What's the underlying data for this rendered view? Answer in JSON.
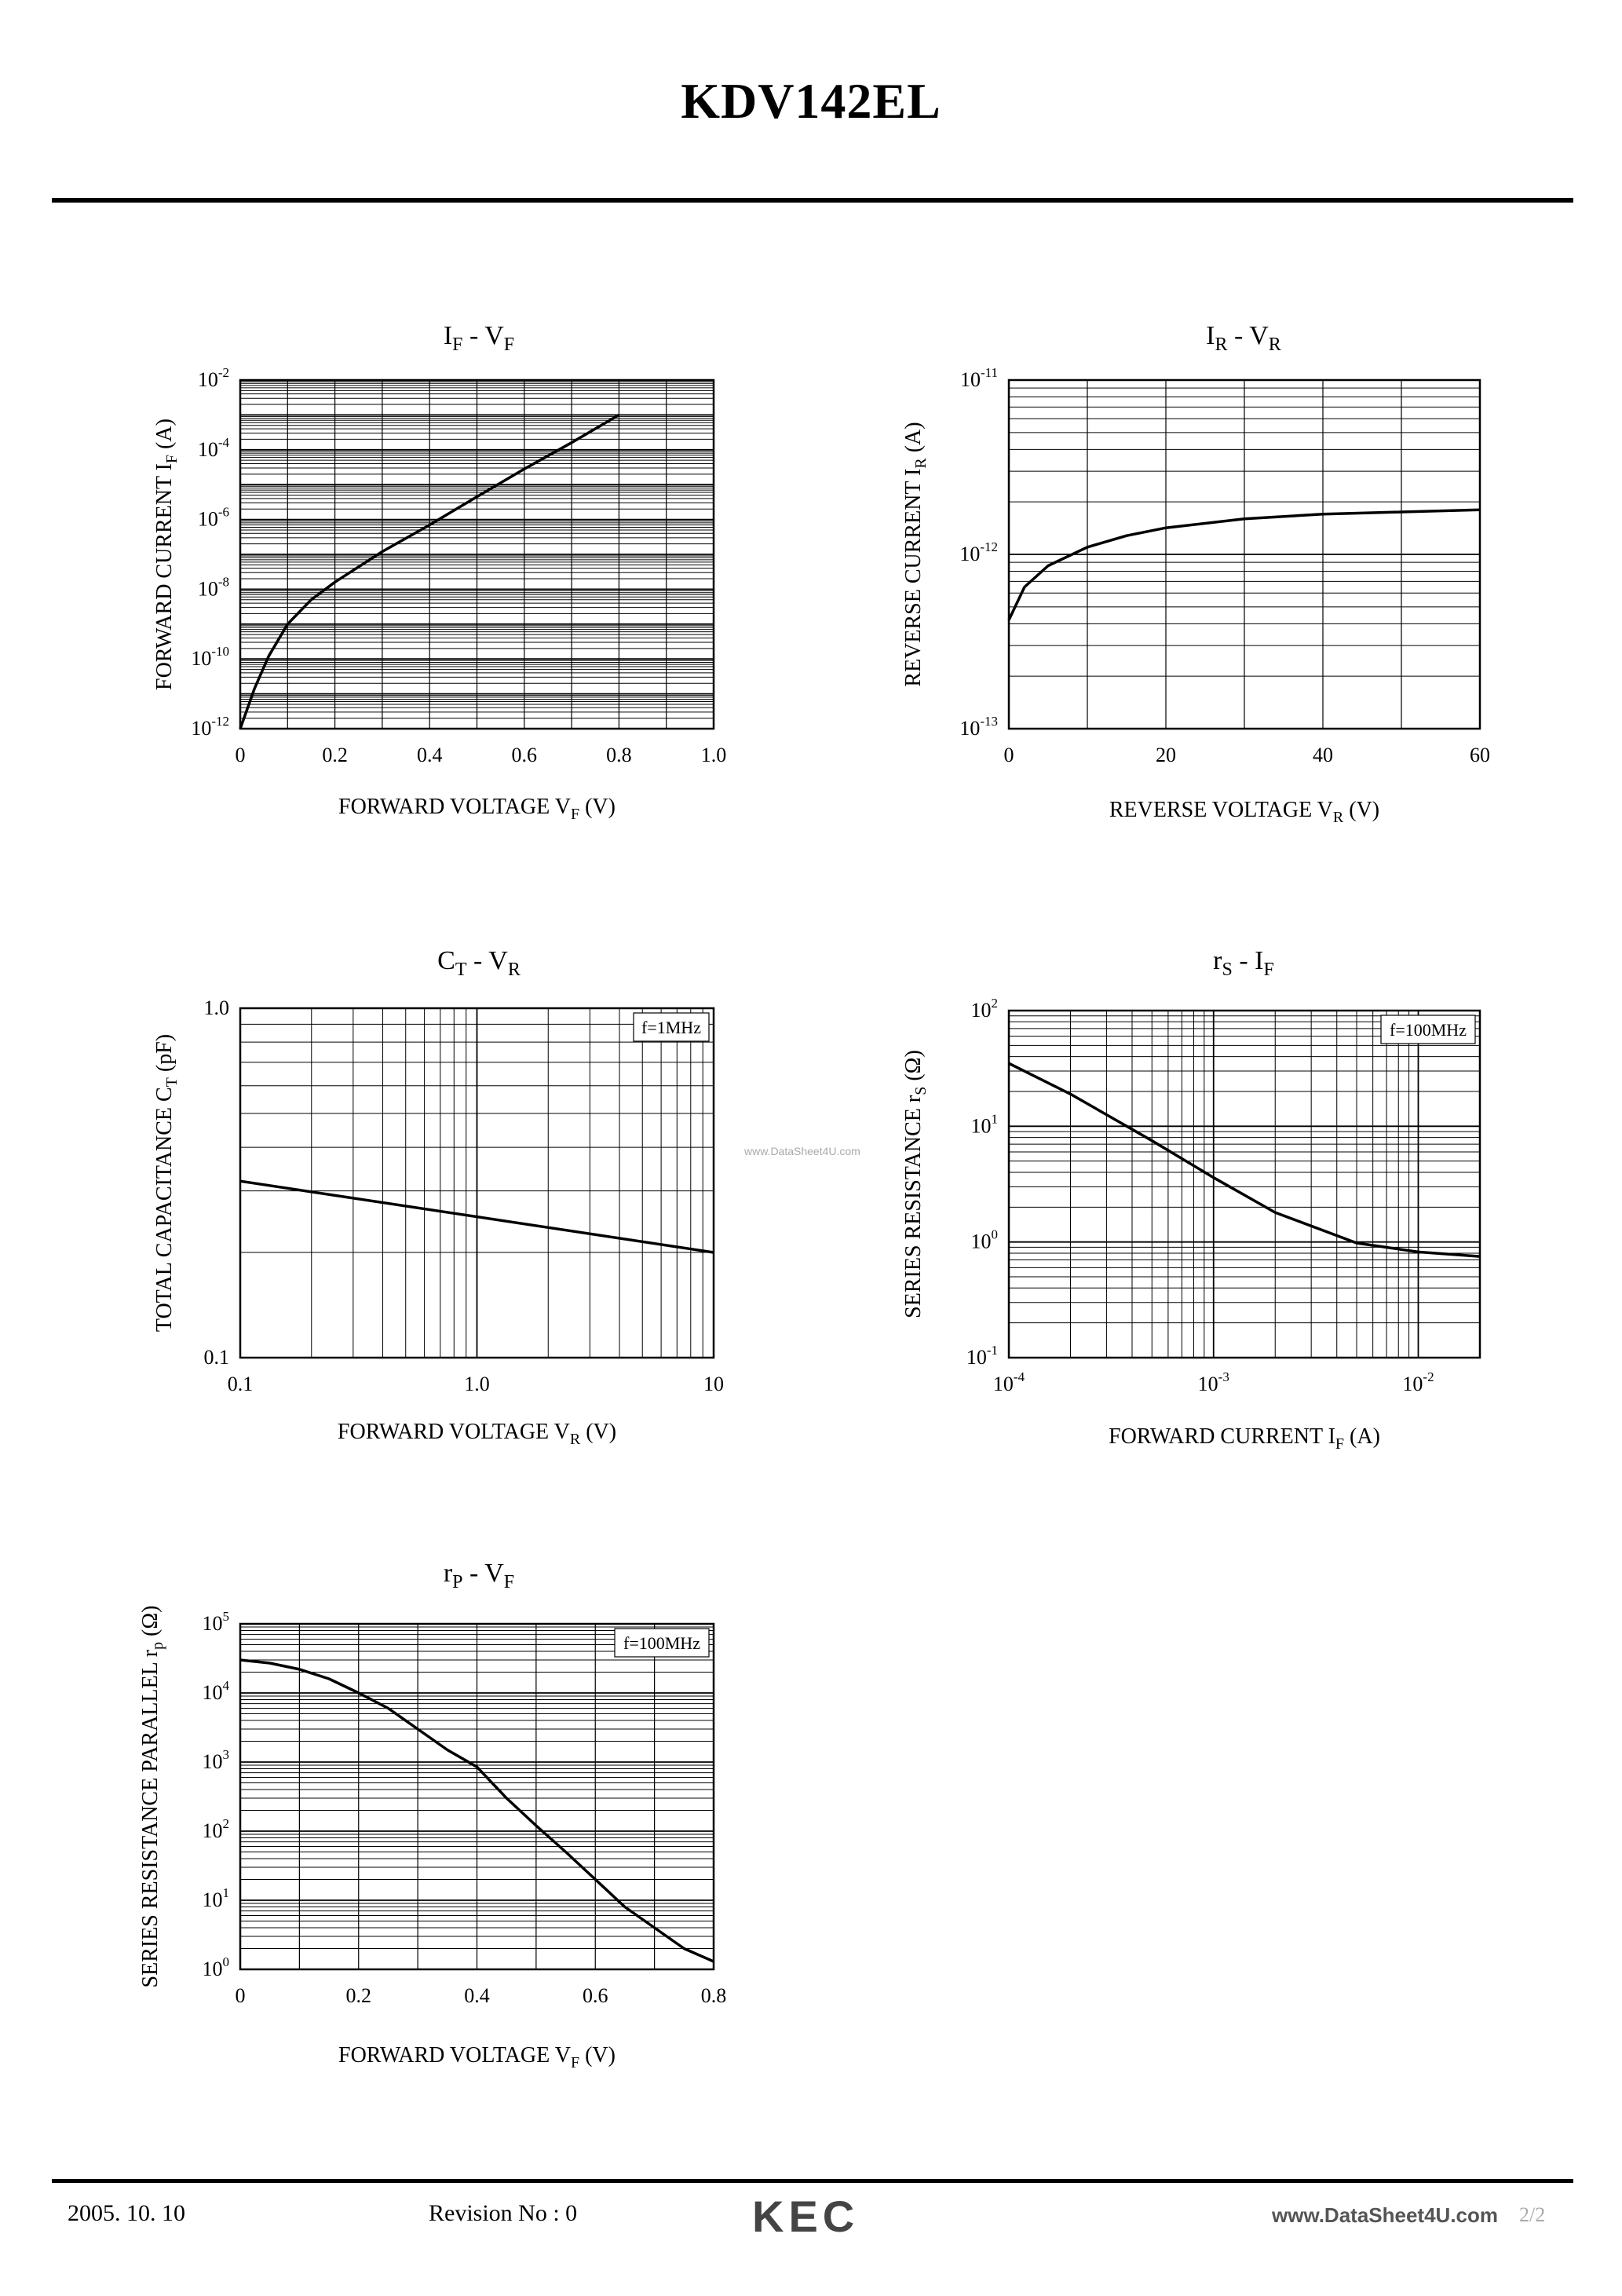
{
  "document": {
    "title": "KDV142EL",
    "footer": {
      "date": "2005. 10. 10",
      "revision": "Revision No : 0",
      "logo": "KEC",
      "website": "www.DataSheet4U.com",
      "page": "2/2"
    },
    "watermark": "www.DataSheet4U.com"
  },
  "chart_data": [
    {
      "id": "if-vf",
      "type": "line",
      "title": {
        "main": "I",
        "main_sub": "F",
        "sep": "-",
        "second": "V",
        "second_sub": "F"
      },
      "xlabel": {
        "pre": "FORWARD VOLTAGE  V",
        "sub": "F",
        "post": " (V)"
      },
      "ylabel": {
        "pre": "FORWARD CURRENT  I",
        "sub": "F",
        "post": " (A)"
      },
      "xscale": "linear",
      "yscale": "log",
      "xlim": [
        0,
        1.0
      ],
      "ylim": [
        1e-12,
        0.01
      ],
      "xticks": [
        {
          "v": 0,
          "label": "0"
        },
        {
          "v": 0.2,
          "label": "0.2"
        },
        {
          "v": 0.4,
          "label": "0.4"
        },
        {
          "v": 0.6,
          "label": "0.6"
        },
        {
          "v": 0.8,
          "label": "0.8"
        },
        {
          "v": 1.0,
          "label": "1.0"
        }
      ],
      "yticks": [
        {
          "v": 1e-12,
          "base": "10",
          "exp": "-12"
        },
        {
          "v": 1e-10,
          "base": "10",
          "exp": "-10"
        },
        {
          "v": 1e-08,
          "base": "10",
          "exp": "-8"
        },
        {
          "v": 1e-06,
          "base": "10",
          "exp": "-6"
        },
        {
          "v": 0.0001,
          "base": "10",
          "exp": "-4"
        },
        {
          "v": 0.01,
          "base": "10",
          "exp": "-2"
        }
      ],
      "xgrid_minor": 10,
      "series": [
        {
          "name": "IF",
          "x": [
            0,
            0.03,
            0.06,
            0.1,
            0.15,
            0.2,
            0.3,
            0.4,
            0.5,
            0.6,
            0.7,
            0.8
          ],
          "y": [
            1e-12,
            1.4e-11,
            1.2e-10,
            1e-09,
            5e-09,
            1.6e-08,
            1.2e-07,
            7e-07,
            4.5e-06,
            2.8e-05,
            0.00016,
            0.001
          ]
        }
      ]
    },
    {
      "id": "ir-vr",
      "type": "line",
      "title": {
        "main": "I",
        "main_sub": "R",
        "sep": "-",
        "second": "V",
        "second_sub": "R"
      },
      "xlabel": {
        "pre": "REVERSE VOLTAGE  V",
        "sub": "R",
        "post": " (V)"
      },
      "ylabel": {
        "pre": "REVERSE CURRENT  I",
        "sub": "R",
        "post": " (A)"
      },
      "xscale": "linear",
      "yscale": "log",
      "xlim": [
        0,
        60
      ],
      "ylim": [
        1e-13,
        1e-11
      ],
      "xticks": [
        {
          "v": 0,
          "label": "0"
        },
        {
          "v": 20,
          "label": "20"
        },
        {
          "v": 40,
          "label": "40"
        },
        {
          "v": 60,
          "label": "60"
        }
      ],
      "yticks": [
        {
          "v": 1e-13,
          "base": "10",
          "exp": "-13"
        },
        {
          "v": 1e-12,
          "base": "10",
          "exp": "-12"
        },
        {
          "v": 1e-11,
          "base": "10",
          "exp": "-11"
        }
      ],
      "xgrid_minor": 6,
      "series": [
        {
          "name": "IR",
          "x": [
            0,
            2,
            5,
            10,
            15,
            20,
            30,
            40,
            50,
            60
          ],
          "y": [
            4.2e-13,
            6.5e-13,
            8.6e-13,
            1.1e-12,
            1.28e-12,
            1.42e-12,
            1.6e-12,
            1.7e-12,
            1.75e-12,
            1.8e-12
          ]
        }
      ]
    },
    {
      "id": "ct-vr",
      "type": "line",
      "title": {
        "main": "C",
        "main_sub": "T",
        "sep": "-",
        "second": "V",
        "second_sub": "R"
      },
      "xlabel": {
        "pre": "FORWARD VOLTAGE  V",
        "sub": "R",
        "post": " (V)"
      },
      "ylabel": {
        "pre": "TOTAL CAPACITANCE  C",
        "sub": "T",
        "post": " (pF)"
      },
      "annotation": "f=1MHz",
      "xscale": "log",
      "yscale": "log",
      "xlim": [
        0.1,
        10
      ],
      "ylim": [
        0.1,
        1.0
      ],
      "xticks": [
        {
          "v": 0.1,
          "label": "0.1"
        },
        {
          "v": 1.0,
          "label": "1.0"
        },
        {
          "v": 10,
          "label": "10"
        }
      ],
      "yticks": [
        {
          "v": 0.1,
          "label": "0.1"
        },
        {
          "v": 1.0,
          "label": "1.0"
        }
      ],
      "series": [
        {
          "name": "CT",
          "x": [
            0.1,
            10
          ],
          "y": [
            0.32,
            0.2
          ]
        }
      ]
    },
    {
      "id": "rs-if",
      "type": "line",
      "title": {
        "main": "r",
        "main_sub": "S",
        "sep": "-",
        "second": "I",
        "second_sub": "F"
      },
      "xlabel": {
        "pre": "FORWARD CURRENT  I",
        "sub": "F",
        "post": " (A)"
      },
      "ylabel": {
        "pre": "SERIES RESISTANCE   r",
        "sub": "S",
        "post": " (Ω)"
      },
      "annotation": "f=100MHz",
      "xscale": "log",
      "yscale": "log",
      "xlim": [
        0.0001,
        0.02
      ],
      "ylim": [
        0.1,
        100
      ],
      "xticks": [
        {
          "v": 0.0001,
          "base": "10",
          "exp": "-4"
        },
        {
          "v": 0.001,
          "base": "10",
          "exp": "-3"
        },
        {
          "v": 0.01,
          "base": "10",
          "exp": "-2"
        }
      ],
      "yticks": [
        {
          "v": 0.1,
          "base": "10",
          "exp": "-1"
        },
        {
          "v": 1,
          "base": "10",
          "exp": "0"
        },
        {
          "v": 10,
          "base": "10",
          "exp": "1"
        },
        {
          "v": 100,
          "base": "10",
          "exp": "2"
        }
      ],
      "series": [
        {
          "name": "rs",
          "x": [
            0.0001,
            0.0002,
            0.0005,
            0.001,
            0.002,
            0.005,
            0.01,
            0.02
          ],
          "y": [
            35,
            19,
            7.5,
            3.6,
            1.8,
            0.98,
            0.82,
            0.75
          ]
        }
      ]
    },
    {
      "id": "rp-vf",
      "type": "line",
      "title": {
        "main": "r",
        "main_sub": "P",
        "sep": "-",
        "second": "V",
        "second_sub": "F"
      },
      "xlabel": {
        "pre": "FORWARD VOLTAGE   V",
        "sub": "F",
        "post": " (V)"
      },
      "ylabel": {
        "pre": "SERIES RESISTANCE PARALLEL   r",
        "sub": "p",
        "post": " (Ω)"
      },
      "annotation": "f=100MHz",
      "xscale": "linear",
      "yscale": "log",
      "xlim": [
        0,
        0.8
      ],
      "ylim": [
        1,
        100000.0
      ],
      "xticks": [
        {
          "v": 0,
          "label": "0"
        },
        {
          "v": 0.2,
          "label": "0.2"
        },
        {
          "v": 0.4,
          "label": "0.4"
        },
        {
          "v": 0.6,
          "label": "0.6"
        },
        {
          "v": 0.8,
          "label": "0.8"
        }
      ],
      "yticks": [
        {
          "v": 1,
          "base": "10",
          "exp": "0"
        },
        {
          "v": 10,
          "base": "10",
          "exp": "1"
        },
        {
          "v": 100,
          "base": "10",
          "exp": "2"
        },
        {
          "v": 1000,
          "base": "10",
          "exp": "3"
        },
        {
          "v": 10000,
          "base": "10",
          "exp": "4"
        },
        {
          "v": 100000,
          "base": "10",
          "exp": "5"
        }
      ],
      "xgrid_minor": 8,
      "series": [
        {
          "name": "rp",
          "x": [
            0,
            0.05,
            0.1,
            0.15,
            0.2,
            0.25,
            0.3,
            0.35,
            0.4,
            0.45,
            0.5,
            0.55,
            0.6,
            0.65,
            0.7,
            0.75,
            0.8
          ],
          "y": [
            30000,
            27000,
            22000,
            16000,
            10000,
            6000,
            3000,
            1500,
            850,
            300,
            120,
            50,
            20,
            8,
            4,
            2,
            1.3
          ]
        }
      ]
    }
  ]
}
